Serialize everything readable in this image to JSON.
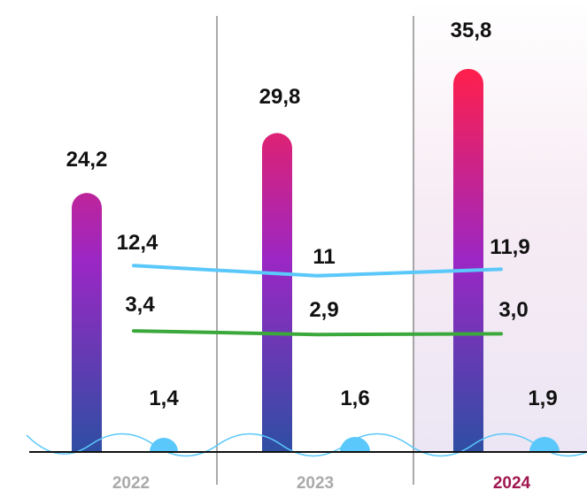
{
  "chart_data": {
    "type": "bar",
    "categories": [
      "2022",
      "2023",
      "2024"
    ],
    "highlighted_category": "2024",
    "series": [
      {
        "role": "bar",
        "values": [
          24.2,
          29.8,
          35.8
        ],
        "labels": [
          "24,2",
          "29,8",
          "35,8"
        ]
      },
      {
        "role": "line",
        "values": [
          12.4,
          11,
          11.9
        ],
        "labels": [
          "12,4",
          "11",
          "11,9"
        ],
        "color": "#5ac8fa"
      },
      {
        "role": "line",
        "values": [
          3.4,
          2.9,
          3.0
        ],
        "labels": [
          "3,4",
          "2,9",
          "3,0"
        ],
        "color": "#3aa83a"
      },
      {
        "role": "marker",
        "values": [
          1.4,
          1.6,
          1.9
        ],
        "labels": [
          "1,4",
          "1,6",
          "1,9"
        ],
        "color": "#5ac8fa"
      }
    ],
    "colors": {
      "bar_top": "#ff1f4b",
      "bar_mid": "#9b27c4",
      "bar_bottom": "#2e4ea3",
      "axis_label": "#aaaaaa",
      "axis_label_highlight": "#a0174f",
      "value_label": "#111111",
      "divider": "#555555",
      "wave": "#5ac8fa"
    }
  }
}
